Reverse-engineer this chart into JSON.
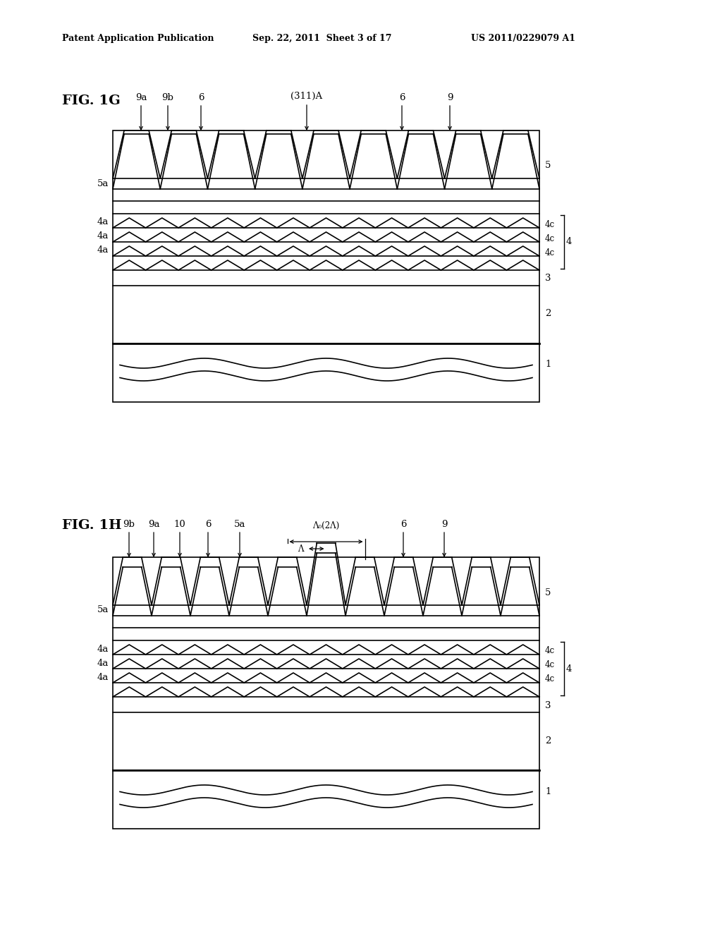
{
  "bg_color": "#ffffff",
  "line_color": "#000000",
  "header_left": "Patent Application Publication",
  "header_mid": "Sep. 22, 2011  Sheet 3 of 17",
  "header_right": "US 2011/0229079 A1",
  "fig1g_label": "FIG. 1G",
  "fig1h_label": "FIG. 1H",
  "ann_311": "(311)A",
  "ann_lam0": "Λ₀(2Λ)",
  "ann_lam": "Λ"
}
